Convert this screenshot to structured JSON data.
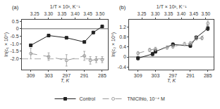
{
  "chart_data": [
    {
      "type": "line",
      "title": "(a)",
      "x_label": "T, K",
      "y_label": "ln(c₁ × 10⁶)",
      "x2_label": "1/T × 10³, K⁻¹",
      "xlim": [
        312,
        283
      ],
      "xticks": [
        309,
        303,
        297,
        291,
        285
      ],
      "x2lim": [
        312,
        283
      ],
      "x2ticks": [
        {
          "value": 307.6923076923077,
          "label": "3.25"
        },
        {
          "value": 303.030303030303,
          "label": "3.30"
        },
        {
          "value": 298.5074626865672,
          "label": "3.35"
        },
        {
          "value": 294.11764705882354,
          "label": "3.40"
        },
        {
          "value": 289.8550724637681,
          "label": "3.45"
        },
        {
          "value": 285.7142857142857,
          "label": "3.50"
        }
      ],
      "ylim": [
        -2.7,
        0.6
      ],
      "yticks": [
        {
          "value": -2.0,
          "label": "-2.0"
        },
        -1.5,
        {
          "value": -1.0,
          "label": "-1.0"
        },
        -0.5,
        0,
        0.5
      ],
      "grid": false,
      "legend": "bottom",
      "hlines": [
        {
          "value": 0.0,
          "color": "#666666",
          "line_style": "solid"
        },
        {
          "value": -2.0,
          "color": "#aaaaaa",
          "line_style": "dashed"
        }
      ],
      "series": [
        {
          "name": "Control",
          "color": "#222222",
          "marker": "square",
          "line_style": "solid",
          "x": [
            309,
            303,
            297,
            291,
            288,
            285
          ],
          "values": [
            -1.1,
            -0.45,
            -0.6,
            -0.88,
            -0.25,
            0.15
          ],
          "errors": [
            0.07,
            0.07,
            0.07,
            0.07,
            0.07,
            0.07
          ]
        },
        {
          "name": "TNIClhio, 10⁻⁴ M",
          "color": "#999999",
          "marker": "open circle",
          "line_style": "dashed",
          "x": [
            309,
            303,
            297,
            291,
            289,
            287,
            285
          ],
          "values": [
            -1.65,
            -1.85,
            -2.1,
            -1.8,
            -2.1,
            -2.05,
            -2.05
          ],
          "errors": [
            0.35,
            0.25,
            0.38,
            0.3,
            0.25,
            0.2,
            0.2
          ]
        }
      ]
    },
    {
      "type": "line",
      "title": "(b)",
      "x_label": "T, K",
      "y_label": "ln(c₂ × 10⁶)",
      "x2_label": "1/T × 10³, K⁻¹",
      "xlim": [
        312,
        283
      ],
      "xticks": [
        309,
        303,
        297,
        291,
        285
      ],
      "x2lim": [
        312,
        283
      ],
      "x2ticks": [
        {
          "value": 307.6923076923077,
          "label": "3.25"
        },
        {
          "value": 303.030303030303,
          "label": "3.30"
        },
        {
          "value": 298.5074626865672,
          "label": "3.35"
        },
        {
          "value": 294.11764705882354,
          "label": "3.40"
        },
        {
          "value": 289.8550724637681,
          "label": "3.45"
        },
        {
          "value": 285.7142857142857,
          "label": "3.50"
        }
      ],
      "ylim": [
        -0.5,
        1.5
      ],
      "yticks": [
        -0.4,
        0,
        0.4,
        0.8,
        1.2
      ],
      "grid": false,
      "legend": "bottom",
      "hlines": [
        {
          "value": 0.0,
          "color": "#666666",
          "line_style": "solid"
        }
      ],
      "series": [
        {
          "name": "Control",
          "color": "#222222",
          "marker": "square",
          "line_style": "solid",
          "x": [
            309,
            304,
            303,
            297,
            291,
            289,
            285
          ],
          "values": [
            -0.05,
            0.12,
            0.22,
            0.5,
            0.45,
            0.78,
            1.15
          ],
          "errors": [
            0.07,
            0.07,
            0.07,
            0.07,
            0.07,
            0.07,
            0.09
          ]
        },
        {
          "name": "TNIClhio, 10⁻⁴ M",
          "color": "#999999",
          "marker": "open circle",
          "line_style": "dashed",
          "x": [
            309,
            305,
            303,
            299,
            297,
            293,
            291,
            289,
            287,
            285
          ],
          "values": [
            0.15,
            0.28,
            0.32,
            0.38,
            0.42,
            0.52,
            0.55,
            0.75,
            0.76,
            1.35
          ],
          "errors": [
            0.07,
            0.07,
            0.07,
            0.07,
            0.07,
            0.07,
            0.07,
            0.07,
            0.07,
            0.1
          ]
        }
      ]
    }
  ]
}
